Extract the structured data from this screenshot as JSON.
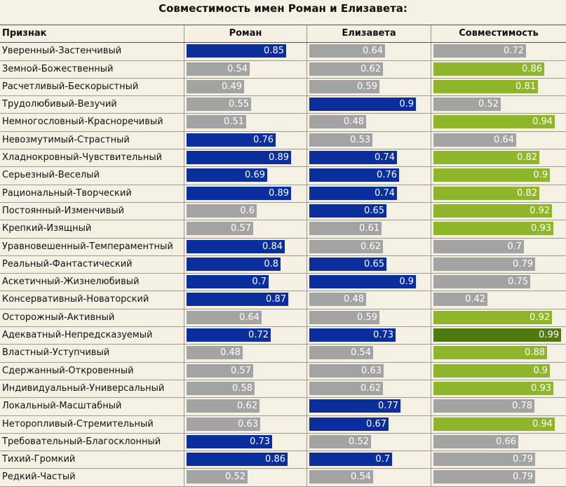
{
  "title": "Совместимость имен Роман и Елизавета:",
  "headers": [
    "Признак",
    "Роман",
    "Елизавета",
    "Совместимость"
  ],
  "colors": {
    "high_name": "#0a2f9c",
    "low": "#a3a3a3",
    "compat_high": "#8fb62a",
    "compat_top": "#4f7a10",
    "background": "#f4f1e4"
  },
  "chart_data": {
    "type": "table",
    "title": "Совместимость имен Роман и Елизавета:",
    "columns": [
      "Признак",
      "Роман",
      "Елизавета",
      "Совместимость"
    ],
    "value_range": [
      0,
      1
    ],
    "rows": [
      {
        "trait": "Уверенный-Застенчивый",
        "roman": 0.85,
        "elizaveta": 0.64,
        "compat": 0.72
      },
      {
        "trait": "Земной-Божественный",
        "roman": 0.54,
        "elizaveta": 0.62,
        "compat": 0.86
      },
      {
        "trait": "Расчетливый-Бескорыстный",
        "roman": 0.49,
        "elizaveta": 0.59,
        "compat": 0.81
      },
      {
        "trait": "Трудолюбивый-Везучий",
        "roman": 0.55,
        "elizaveta": 0.9,
        "compat": 0.52
      },
      {
        "trait": "Немногословный-Красноречивый",
        "roman": 0.51,
        "elizaveta": 0.48,
        "compat": 0.94
      },
      {
        "trait": "Невозмутимый-Страстный",
        "roman": 0.76,
        "elizaveta": 0.53,
        "compat": 0.64
      },
      {
        "trait": "Хладнокровный-Чувствительный",
        "roman": 0.89,
        "elizaveta": 0.74,
        "compat": 0.82
      },
      {
        "trait": "Серьезный-Веселый",
        "roman": 0.69,
        "elizaveta": 0.76,
        "compat": 0.9
      },
      {
        "trait": "Рациональный-Творческий",
        "roman": 0.89,
        "elizaveta": 0.74,
        "compat": 0.82
      },
      {
        "trait": "Постоянный-Изменчивый",
        "roman": 0.6,
        "elizaveta": 0.65,
        "compat": 0.92
      },
      {
        "trait": "Крепкий-Изящный",
        "roman": 0.57,
        "elizaveta": 0.61,
        "compat": 0.93
      },
      {
        "trait": "Уравновешенный-Темпераментный",
        "roman": 0.84,
        "elizaveta": 0.62,
        "compat": 0.7
      },
      {
        "trait": "Реальный-Фантастический",
        "roman": 0.8,
        "elizaveta": 0.65,
        "compat": 0.79
      },
      {
        "trait": "Аскетичный-Жизнелюбивый",
        "roman": 0.7,
        "elizaveta": 0.9,
        "compat": 0.75
      },
      {
        "trait": "Консервативный-Новаторский",
        "roman": 0.87,
        "elizaveta": 0.48,
        "compat": 0.42
      },
      {
        "trait": "Осторожный-Активный",
        "roman": 0.64,
        "elizaveta": 0.59,
        "compat": 0.92
      },
      {
        "trait": "Адекватный-Непредсказуемый",
        "roman": 0.72,
        "elizaveta": 0.73,
        "compat": 0.99
      },
      {
        "trait": "Властный-Уступчивый",
        "roman": 0.48,
        "elizaveta": 0.54,
        "compat": 0.88
      },
      {
        "trait": "Сдержанный-Откровенный",
        "roman": 0.57,
        "elizaveta": 0.63,
        "compat": 0.9
      },
      {
        "trait": "Индивидуальный-Универсальный",
        "roman": 0.58,
        "elizaveta": 0.62,
        "compat": 0.93
      },
      {
        "trait": "Локальный-Масштабный",
        "roman": 0.62,
        "elizaveta": 0.77,
        "compat": 0.78
      },
      {
        "trait": "Неторопливый-Стремительный",
        "roman": 0.63,
        "elizaveta": 0.67,
        "compat": 0.94
      },
      {
        "trait": "Требовательный-Благосклонный",
        "roman": 0.73,
        "elizaveta": 0.52,
        "compat": 0.66
      },
      {
        "trait": "Тихий-Громкий",
        "roman": 0.86,
        "elizaveta": 0.7,
        "compat": 0.79
      },
      {
        "trait": "Редкий-Частый",
        "roman": 0.52,
        "elizaveta": 0.54,
        "compat": 0.79
      }
    ]
  }
}
